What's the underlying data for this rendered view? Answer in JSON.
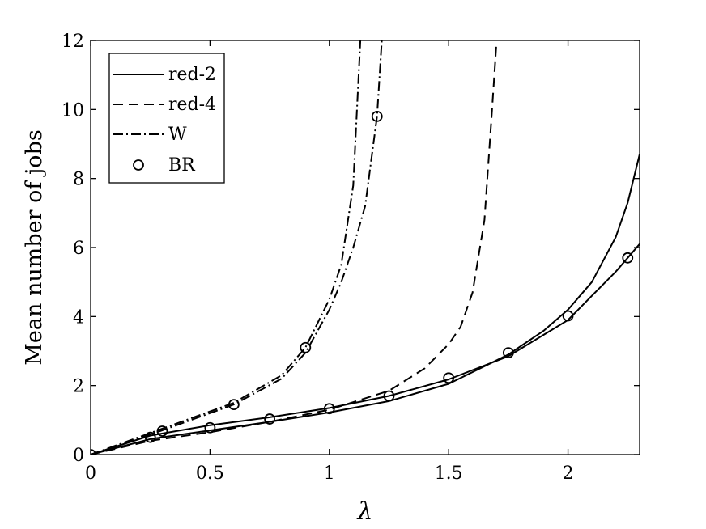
{
  "chart_data": {
    "type": "line",
    "xlabel": "λ",
    "ylabel": "Mean number of jobs",
    "xlim": [
      0,
      2.3
    ],
    "ylim": [
      0,
      12
    ],
    "xticks": [
      "0",
      "0.5",
      "1",
      "1.5",
      "2"
    ],
    "yticks": [
      "0",
      "2",
      "4",
      "6",
      "8",
      "10",
      "12"
    ],
    "xtick_values": [
      0,
      0.5,
      1,
      1.5,
      2
    ],
    "ytick_values": [
      0,
      2,
      4,
      6,
      8,
      10,
      12
    ],
    "grid": false,
    "legend_position": "top-left",
    "legend": [
      {
        "label": "red-2",
        "style": "solid"
      },
      {
        "label": "red-4",
        "style": "dashed"
      },
      {
        "label": "W",
        "style": "dashdot"
      },
      {
        "label": "BR",
        "style": "marker-circle"
      }
    ],
    "series": [
      {
        "style": "solid",
        "x": [
          0,
          0.25,
          0.5,
          0.75,
          1.0,
          1.25,
          1.5,
          1.75,
          2.0,
          2.1,
          2.2,
          2.3
        ],
        "y": [
          0,
          0.55,
          0.85,
          1.08,
          1.35,
          1.7,
          2.18,
          2.85,
          3.9,
          4.6,
          5.3,
          6.1
        ]
      },
      {
        "style": "solid",
        "x": [
          0,
          0.25,
          0.5,
          0.75,
          1.0,
          1.25,
          1.5,
          1.75,
          1.9,
          2.0,
          2.1,
          2.2,
          2.25,
          2.3
        ],
        "y": [
          0,
          0.45,
          0.7,
          0.95,
          1.22,
          1.55,
          2.05,
          2.9,
          3.6,
          4.2,
          5.0,
          6.3,
          7.3,
          8.7
        ]
      },
      {
        "style": "dashed",
        "x": [
          0,
          0.25,
          0.5,
          0.75,
          1.0,
          1.25,
          1.4,
          1.5,
          1.55,
          1.6,
          1.65,
          1.68,
          1.7
        ],
        "y": [
          0,
          0.4,
          0.65,
          0.95,
          1.3,
          1.85,
          2.5,
          3.2,
          3.7,
          4.7,
          6.8,
          9.8,
          11.9
        ]
      },
      {
        "style": "dashdot",
        "x": [
          0,
          0.3,
          0.6,
          0.8,
          0.9,
          1.0,
          1.05,
          1.1,
          1.13
        ],
        "y": [
          0,
          0.75,
          1.5,
          2.3,
          3.1,
          4.5,
          5.5,
          7.8,
          12
        ]
      },
      {
        "style": "dashdot",
        "x": [
          0,
          0.3,
          0.6,
          0.8,
          0.9,
          1.0,
          1.05,
          1.1,
          1.15,
          1.2,
          1.22
        ],
        "y": [
          0,
          0.7,
          1.45,
          2.2,
          2.95,
          4.2,
          5.0,
          6.0,
          7.2,
          9.8,
          12
        ]
      },
      {
        "style": "marker-circle",
        "x": [
          0,
          0.25,
          0.3,
          0.5,
          0.6,
          0.75,
          0.9,
          1.0,
          1.2,
          1.25,
          1.5,
          1.75,
          2.0,
          2.25
        ],
        "y": [
          0,
          0.5,
          0.68,
          0.78,
          1.45,
          1.03,
          3.1,
          1.33,
          9.8,
          1.7,
          2.22,
          2.95,
          4.02,
          5.7
        ]
      }
    ]
  }
}
